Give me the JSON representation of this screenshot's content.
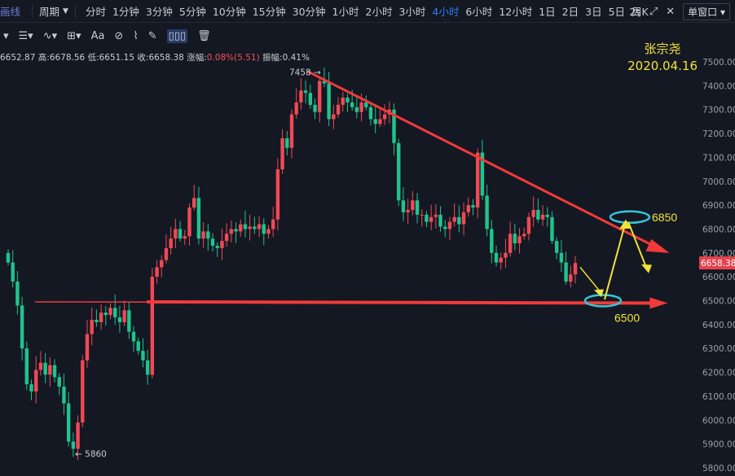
{
  "topbar": {
    "lead": "画线",
    "period_label": "周期",
    "intervals": [
      "分时",
      "1分钟",
      "3分钟",
      "5分钟",
      "10分钟",
      "15分钟",
      "30分钟",
      "1小时",
      "2小时",
      "3小时",
      "4小时",
      "6小时",
      "12小时",
      "1日",
      "2日",
      "3日",
      "5日",
      "周K"
    ],
    "active_interval": "4小时",
    "refresh": "2s",
    "window_button": "单窗口"
  },
  "infobar": {
    "open": "6652.87",
    "high_label": "高:",
    "high": "6678.56",
    "low_label": "低:",
    "low": "6651.15",
    "close_label": "收:",
    "close": "6658.38",
    "change_label": "涨幅:",
    "change": "0.08%(5.51)",
    "amp_label": "振幅:",
    "amp": "0.41%"
  },
  "annotation": {
    "author": "张宗尧",
    "date": "2020.04.16"
  },
  "colors": {
    "up": "#ef4a55",
    "down": "#20c38d",
    "line": "#f23a3a",
    "arrow": "#f2e33a",
    "ellipse": "#35c6d9",
    "bg": "#141823",
    "label": "#f2e33a"
  },
  "chart_data": {
    "type": "candlestick",
    "ylim": [
      5800,
      7500
    ],
    "y_ticks": [
      5800,
      5900,
      6000,
      6100,
      6200,
      6300,
      6400,
      6500,
      6600,
      6700,
      6800,
      6900,
      7000,
      7100,
      7200,
      7300,
      7400,
      7500
    ],
    "last_price": "6658.38",
    "annotations": {
      "high_mark": "7458",
      "low_mark": "5860",
      "level_upper": "6850",
      "level_lower": "6500"
    },
    "trendline_upper": [
      [
        0.44,
        7460
      ],
      [
        0.955,
        6700
      ]
    ],
    "trendline_lower": [
      [
        0.05,
        6495
      ],
      [
        0.955,
        6490
      ]
    ],
    "close_series": [
      6660,
      6580,
      6480,
      6300,
      6150,
      6120,
      6210,
      6240,
      6190,
      6230,
      6180,
      6140,
      6070,
      5910,
      5880,
      5990,
      6250,
      6360,
      6420,
      6410,
      6450,
      6440,
      6470,
      6430,
      6410,
      6460,
      6370,
      6330,
      6290,
      6250,
      6190,
      6600,
      6640,
      6670,
      6720,
      6760,
      6800,
      6760,
      6770,
      6890,
      6930,
      6760,
      6790,
      6760,
      6730,
      6720,
      6750,
      6780,
      6800,
      6790,
      6820,
      6800,
      6810,
      6800,
      6820,
      6780,
      6800,
      6840,
      7050,
      7180,
      7140,
      7280,
      7330,
      7380,
      7370,
      7320,
      7290,
      7420,
      7410,
      7260,
      7280,
      7320,
      7350,
      7330,
      7310,
      7290,
      7330,
      7310,
      7260,
      7240,
      7260,
      7280,
      7300,
      7160,
      6920,
      6870,
      6880,
      6920,
      6860,
      6860,
      6830,
      6850,
      6860,
      6810,
      6800,
      6830,
      6850,
      6820,
      6870,
      6900,
      6890,
      7120,
      6940,
      6800,
      6700,
      6660,
      6680,
      6700,
      6780,
      6740,
      6770,
      6780,
      6850,
      6880,
      6840,
      6860,
      6850,
      6750,
      6700,
      6660,
      6580,
      6610,
      6658
    ]
  }
}
